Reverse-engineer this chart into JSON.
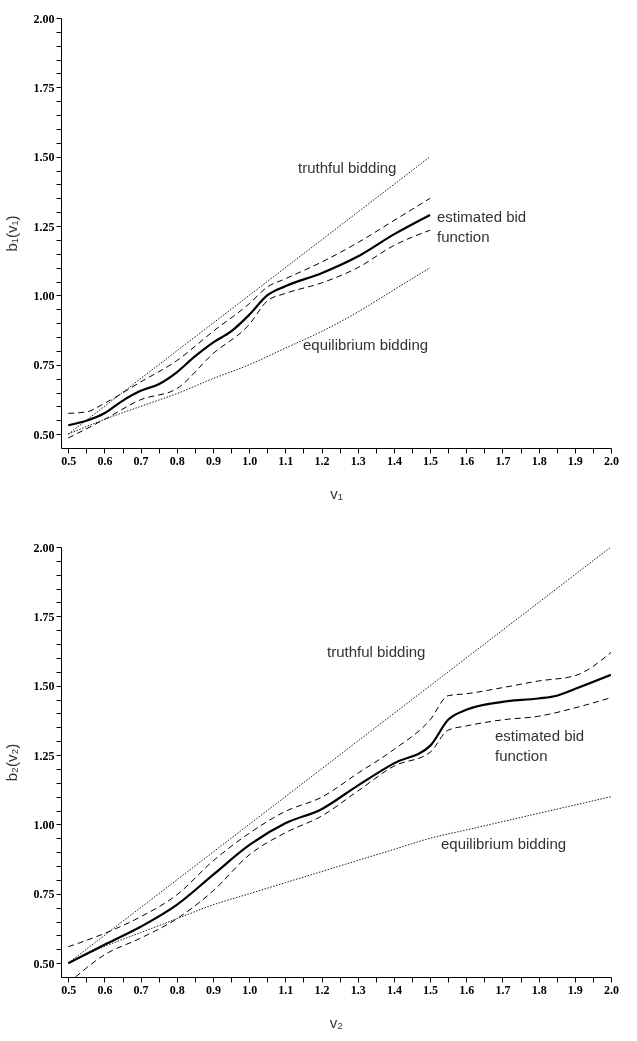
{
  "chart_data": [
    {
      "type": "line",
      "xlabel": "v₁",
      "ylabel": "b₁(v₁)",
      "xlim": [
        0.48,
        2.0
      ],
      "ylim": [
        0.45,
        2.0
      ],
      "grid": false,
      "marker": "none",
      "xticks": [
        0.5,
        {
          "value": 0.55,
          "label": null
        },
        0.6,
        {
          "value": 0.65,
          "label": null
        },
        0.7,
        {
          "value": 0.75,
          "label": null
        },
        0.8,
        {
          "value": 0.85,
          "label": null
        },
        0.9,
        {
          "value": 0.95,
          "label": null
        },
        {
          "value": 1.0,
          "label": "1.0"
        },
        {
          "value": 1.05,
          "label": null
        },
        1.1,
        {
          "value": 1.15,
          "label": null
        },
        1.2,
        {
          "value": 1.25,
          "label": null
        },
        1.3,
        {
          "value": 1.35,
          "label": null
        },
        1.4,
        {
          "value": 1.45,
          "label": null
        },
        1.5,
        {
          "value": 1.55,
          "label": null
        },
        1.6,
        {
          "value": 1.65,
          "label": null
        },
        1.7,
        {
          "value": 1.75,
          "label": null
        },
        1.8,
        {
          "value": 1.85,
          "label": null
        },
        1.9,
        {
          "value": 1.95,
          "label": null
        },
        {
          "value": 2.0,
          "label": "2.0"
        }
      ],
      "yticks": [
        {
          "value": 0.5,
          "label": "0.50"
        },
        {
          "value": 0.55,
          "label": null
        },
        {
          "value": 0.6,
          "label": null
        },
        {
          "value": 0.65,
          "label": null
        },
        {
          "value": 0.7,
          "label": null
        },
        {
          "value": 0.75,
          "label": "0.75"
        },
        {
          "value": 0.8,
          "label": null
        },
        {
          "value": 0.85,
          "label": null
        },
        {
          "value": 0.9,
          "label": null
        },
        {
          "value": 0.95,
          "label": null
        },
        {
          "value": 1.0,
          "label": "1.00"
        },
        {
          "value": 1.05,
          "label": null
        },
        {
          "value": 1.1,
          "label": null
        },
        {
          "value": 1.15,
          "label": null
        },
        {
          "value": 1.2,
          "label": null
        },
        {
          "value": 1.25,
          "label": "1.25"
        },
        {
          "value": 1.3,
          "label": null
        },
        {
          "value": 1.35,
          "label": null
        },
        {
          "value": 1.4,
          "label": null
        },
        {
          "value": 1.45,
          "label": null
        },
        {
          "value": 1.5,
          "label": "1.50"
        },
        {
          "value": 1.55,
          "label": null
        },
        {
          "value": 1.6,
          "label": null
        },
        {
          "value": 1.65,
          "label": null
        },
        {
          "value": 1.7,
          "label": null
        },
        {
          "value": 1.75,
          "label": "1.75"
        },
        {
          "value": 1.8,
          "label": null
        },
        {
          "value": 1.85,
          "label": null
        },
        {
          "value": 1.9,
          "label": null
        },
        {
          "value": 1.95,
          "label": null
        },
        {
          "value": 2.0,
          "label": "2.00"
        }
      ],
      "series": [
        {
          "color": "#000000",
          "line_style": "dotted",
          "x": [
            0.5,
            1.5
          ],
          "values": [
            0.5,
            1.5
          ]
        },
        {
          "color": "#000000",
          "line_style": "dotted",
          "x": [
            0.5,
            0.6,
            0.7,
            0.8,
            0.9,
            1.0,
            1.1,
            1.2,
            1.3,
            1.4,
            1.5
          ],
          "values": [
            0.5,
            0.553,
            0.6,
            0.646,
            0.7,
            0.75,
            0.81,
            0.87,
            0.94,
            1.02,
            1.1
          ]
        },
        {
          "color": "#000000",
          "line_style": "dashed",
          "x": [
            0.5,
            0.55,
            0.6,
            0.7,
            0.8,
            0.9,
            1.0,
            1.05,
            1.1,
            1.2,
            1.3,
            1.4,
            1.5
          ],
          "values": [
            0.575,
            0.58,
            0.611,
            0.688,
            0.765,
            0.87,
            0.97,
            1.03,
            1.06,
            1.12,
            1.19,
            1.27,
            1.35
          ]
        },
        {
          "color": "#000000",
          "line_style": "dashed",
          "x": [
            0.5,
            0.6,
            0.7,
            0.8,
            0.9,
            1.0,
            1.05,
            1.1,
            1.2,
            1.3,
            1.4,
            1.5
          ],
          "values": [
            0.486,
            0.553,
            0.624,
            0.664,
            0.79,
            0.895,
            0.98,
            1.007,
            1.045,
            1.1,
            1.18,
            1.235
          ]
        },
        {
          "color": "#000000",
          "line_style": "solid",
          "x": [
            0.5,
            0.55,
            0.6,
            0.65,
            0.7,
            0.75,
            0.8,
            0.85,
            0.9,
            0.95,
            1.0,
            1.05,
            1.1,
            1.2,
            1.3,
            1.4,
            1.5
          ],
          "values": [
            0.532,
            0.548,
            0.575,
            0.62,
            0.656,
            0.68,
            0.723,
            0.78,
            0.83,
            0.87,
            0.93,
            1.0,
            1.033,
            1.08,
            1.14,
            1.22,
            1.29
          ]
        }
      ],
      "annotations": [
        "truthful bidding",
        "estimated bid function",
        "equilibrium bidding"
      ]
    },
    {
      "type": "line",
      "xlabel": "v₂",
      "ylabel": "b₂(v₂)",
      "xlim": [
        0.48,
        2.0
      ],
      "ylim": [
        0.45,
        2.0
      ],
      "grid": false,
      "marker": "none",
      "xticks": [
        0.5,
        {
          "value": 0.55,
          "label": null
        },
        0.6,
        {
          "value": 0.65,
          "label": null
        },
        0.7,
        {
          "value": 0.75,
          "label": null
        },
        0.8,
        {
          "value": 0.85,
          "label": null
        },
        0.9,
        {
          "value": 0.95,
          "label": null
        },
        {
          "value": 1.0,
          "label": "1.0"
        },
        {
          "value": 1.05,
          "label": null
        },
        1.1,
        {
          "value": 1.15,
          "label": null
        },
        1.2,
        {
          "value": 1.25,
          "label": null
        },
        1.3,
        {
          "value": 1.35,
          "label": null
        },
        1.4,
        {
          "value": 1.45,
          "label": null
        },
        1.5,
        {
          "value": 1.55,
          "label": null
        },
        1.6,
        {
          "value": 1.65,
          "label": null
        },
        1.7,
        {
          "value": 1.75,
          "label": null
        },
        1.8,
        {
          "value": 1.85,
          "label": null
        },
        1.9,
        {
          "value": 1.95,
          "label": null
        },
        {
          "value": 2.0,
          "label": "2.0"
        }
      ],
      "yticks": [
        {
          "value": 0.5,
          "label": "0.50"
        },
        {
          "value": 0.55,
          "label": null
        },
        {
          "value": 0.6,
          "label": null
        },
        {
          "value": 0.65,
          "label": null
        },
        {
          "value": 0.7,
          "label": null
        },
        {
          "value": 0.75,
          "label": "0.75"
        },
        {
          "value": 0.8,
          "label": null
        },
        {
          "value": 0.85,
          "label": null
        },
        {
          "value": 0.9,
          "label": null
        },
        {
          "value": 0.95,
          "label": null
        },
        {
          "value": 1.0,
          "label": "1.00"
        },
        {
          "value": 1.05,
          "label": null
        },
        {
          "value": 1.1,
          "label": null
        },
        {
          "value": 1.15,
          "label": null
        },
        {
          "value": 1.2,
          "label": null
        },
        {
          "value": 1.25,
          "label": "1.25"
        },
        {
          "value": 1.3,
          "label": null
        },
        {
          "value": 1.35,
          "label": null
        },
        {
          "value": 1.4,
          "label": null
        },
        {
          "value": 1.45,
          "label": null
        },
        {
          "value": 1.5,
          "label": "1.50"
        },
        {
          "value": 1.55,
          "label": null
        },
        {
          "value": 1.6,
          "label": null
        },
        {
          "value": 1.65,
          "label": null
        },
        {
          "value": 1.7,
          "label": null
        },
        {
          "value": 1.75,
          "label": "1.75"
        },
        {
          "value": 1.8,
          "label": null
        },
        {
          "value": 1.85,
          "label": null
        },
        {
          "value": 1.9,
          "label": null
        },
        {
          "value": 1.95,
          "label": null
        },
        {
          "value": 2.0,
          "label": "2.00"
        }
      ],
      "series": [
        {
          "color": "#000000",
          "line_style": "dotted",
          "x": [
            0.5,
            2.0
          ],
          "values": [
            0.5,
            2.0
          ]
        },
        {
          "color": "#000000",
          "line_style": "dotted",
          "x": [
            0.5,
            0.6,
            0.7,
            0.8,
            0.9,
            1.0,
            1.1,
            1.2,
            1.3,
            1.4,
            1.5,
            1.6,
            1.7,
            1.8,
            1.9,
            2.0
          ],
          "values": [
            0.5,
            0.56,
            0.61,
            0.66,
            0.71,
            0.75,
            0.79,
            0.83,
            0.87,
            0.91,
            0.95,
            0.98,
            1.01,
            1.04,
            1.07,
            1.1
          ]
        },
        {
          "color": "#000000",
          "line_style": "dashed",
          "x": [
            0.5,
            0.6,
            0.7,
            0.8,
            0.9,
            1.0,
            1.1,
            1.2,
            1.3,
            1.4,
            1.5,
            1.55,
            1.6,
            1.7,
            1.8,
            1.9,
            2.0
          ],
          "values": [
            0.559,
            0.607,
            0.667,
            0.746,
            0.868,
            0.968,
            1.047,
            1.098,
            1.184,
            1.27,
            1.377,
            1.464,
            1.471,
            1.493,
            1.517,
            1.536,
            1.62
          ]
        },
        {
          "color": "#000000",
          "line_style": "dashed",
          "x": [
            0.52,
            0.6,
            0.7,
            0.8,
            0.9,
            1.0,
            1.1,
            1.2,
            1.3,
            1.4,
            1.5,
            1.55,
            1.6,
            1.7,
            1.8,
            1.9,
            2.0
          ],
          "values": [
            0.45,
            0.53,
            0.59,
            0.66,
            0.76,
            0.89,
            0.97,
            1.03,
            1.12,
            1.21,
            1.26,
            1.34,
            1.355,
            1.377,
            1.39,
            1.42,
            1.457
          ]
        },
        {
          "color": "#000000",
          "line_style": "solid",
          "x": [
            0.5,
            0.6,
            0.7,
            0.8,
            0.9,
            1.0,
            1.1,
            1.2,
            1.3,
            1.4,
            1.5,
            1.55,
            1.6,
            1.7,
            1.8,
            1.85,
            1.9,
            2.0
          ],
          "values": [
            0.5,
            0.566,
            0.631,
            0.71,
            0.818,
            0.925,
            1.004,
            1.055,
            1.14,
            1.22,
            1.283,
            1.377,
            1.413,
            1.442,
            1.454,
            1.464,
            1.488,
            1.539
          ]
        }
      ],
      "annotations": [
        "truthful bidding",
        "estimated bid function",
        "equilibrium bidding"
      ]
    }
  ]
}
